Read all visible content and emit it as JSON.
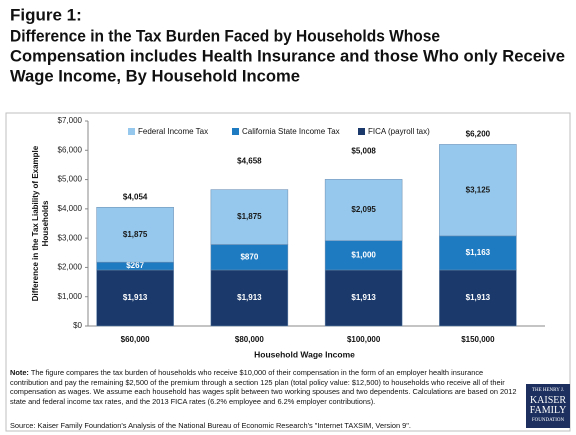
{
  "chart_data": {
    "type": "stacked_bar",
    "figure_label": "Figure 1:",
    "title_lines": [
      "Difference in the Tax Burden Faced by Households Whose",
      "Compensation includes Health Insurance and those Who only Receive",
      "Wage Income, By Household Income"
    ],
    "ylabel_lines": [
      "Difference in the Tax Liability of Example",
      "Households"
    ],
    "xlabel": "Household Wage Income",
    "categories": [
      "$60,000",
      "$80,000",
      "$100,000",
      "$150,000"
    ],
    "series": [
      {
        "name": "FICA (payroll tax)",
        "color": "#1b3a6b",
        "label_color": "#ffffff",
        "values": [
          1913,
          1913,
          1913,
          1913
        ],
        "value_labels": [
          "$1,913",
          "$1,913",
          "$1,913",
          "$1,913"
        ]
      },
      {
        "name": "California State Income Tax",
        "color": "#1f7bc1",
        "label_color": "#ffffff",
        "values": [
          267,
          870,
          1000,
          1163
        ],
        "value_labels": [
          "$267",
          "$870",
          "$1,000",
          "$1,163"
        ]
      },
      {
        "name": "Federal Income Tax",
        "color": "#95c8ec",
        "label_color": "#1a1a1a",
        "values": [
          1875,
          1875,
          2095,
          3125
        ],
        "value_labels": [
          "$1,875",
          "$1,875",
          "$2,095",
          "$3,125"
        ]
      }
    ],
    "totals": {
      "values": [
        4054,
        4658,
        5008,
        6200
      ],
      "value_labels": [
        "$4,054",
        "$4,658",
        "$5,008",
        "$6,200"
      ]
    },
    "ylim": [
      0,
      7000
    ],
    "yticks": [
      {
        "value": 0,
        "label": "$0"
      },
      {
        "value": 1000,
        "label": "$1,000"
      },
      {
        "value": 2000,
        "label": "$2,000"
      },
      {
        "value": 3000,
        "label": "$3,000"
      },
      {
        "value": 4000,
        "label": "$4,000"
      },
      {
        "value": 5000,
        "label": "$5,000"
      },
      {
        "value": 6000,
        "label": "$6,000"
      },
      {
        "value": 7000,
        "label": "$7,000"
      }
    ],
    "legend_order": [
      2,
      1,
      0
    ],
    "note_label": "Note:",
    "note": "The figure compares the tax burden of households who receive $10,000 of their compensation in the form of an employer health insurance contribution and pay the remaining $2,500 of the premium through a section 125 plan (total policy value: $12,500) to households who receive all of their compensation as wages.  We assume each household has wages split between two working spouses and two dependents.  Calculations are based on 2012 state and federal income tax rates, and the 2013 FICA rates (6.2% employee and 6.2% employer contributions).",
    "source": "Source:  Kaiser Family Foundation's Analysis of the National Bureau of Economic Research's \"Internet TAXSIM, Version 9\".",
    "logo_lines": [
      "THE HENRY J.",
      "KAISER",
      "FAMILY",
      "FOUNDATION"
    ]
  }
}
